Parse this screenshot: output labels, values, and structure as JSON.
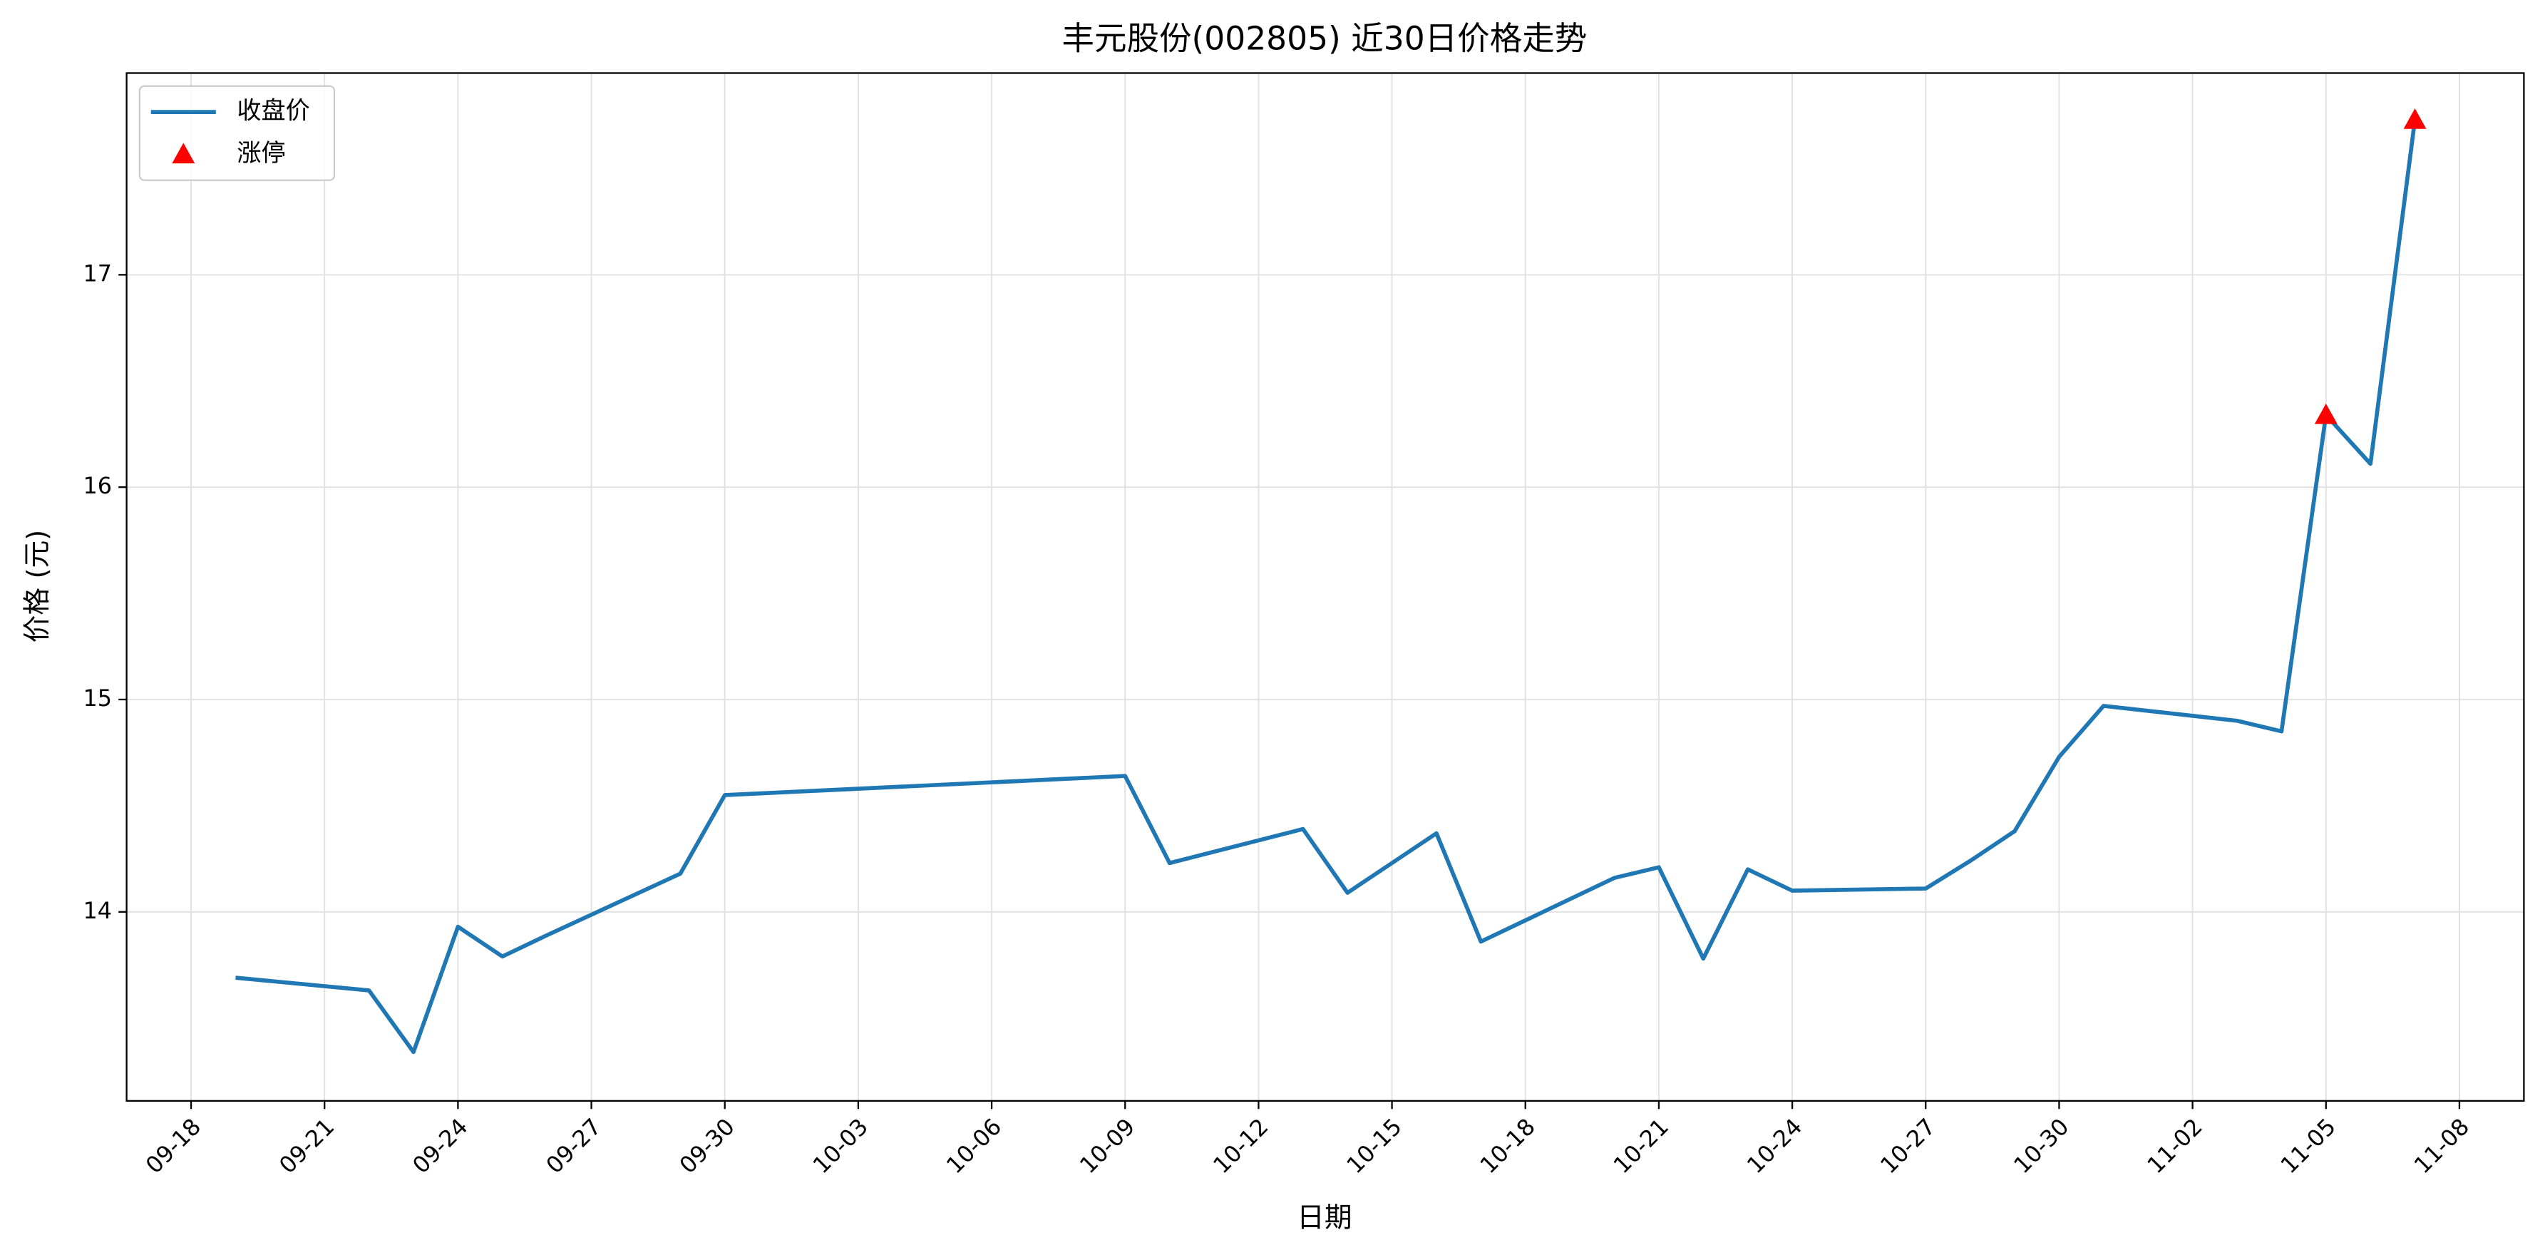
{
  "chart_data": {
    "type": "line",
    "title": "丰元股份(002805) 近30日价格走势",
    "xlabel": "日期",
    "ylabel": "价格 (元)",
    "series": [
      {
        "name": "收盘价",
        "color": "#1f77b4",
        "marker": "none",
        "x": [
          "09-19",
          "09-22",
          "09-23",
          "09-24",
          "09-25",
          "09-26",
          "09-29",
          "09-30",
          "10-09",
          "10-10",
          "10-13",
          "10-14",
          "10-15",
          "10-16",
          "10-17",
          "10-20",
          "10-21",
          "10-22",
          "10-23",
          "10-24",
          "10-27",
          "10-28",
          "10-29",
          "10-30",
          "10-31",
          "11-03",
          "11-04",
          "11-05",
          "11-06",
          "11-07"
        ],
        "values": [
          13.69,
          13.63,
          13.34,
          13.93,
          13.79,
          13.89,
          14.18,
          14.55,
          14.64,
          14.23,
          14.39,
          14.09,
          14.23,
          14.37,
          13.86,
          14.16,
          14.21,
          13.78,
          14.2,
          14.1,
          14.11,
          14.24,
          14.38,
          14.73,
          14.97,
          14.9,
          14.85,
          16.34,
          16.11,
          17.73
        ]
      },
      {
        "name": "涨停",
        "color": "#ff0000",
        "marker": "triangle",
        "x": [
          "11-05",
          "11-07"
        ],
        "values": [
          16.34,
          17.73
        ]
      }
    ],
    "xticks": [
      "09-18",
      "09-21",
      "09-24",
      "09-27",
      "09-30",
      "10-03",
      "10-06",
      "10-09",
      "10-12",
      "10-15",
      "10-18",
      "10-21",
      "10-24",
      "10-27",
      "10-30",
      "11-02",
      "11-05",
      "11-08"
    ],
    "ylim": [
      13.11,
      17.95
    ],
    "yticks": [
      14,
      15,
      16,
      17
    ],
    "grid": true,
    "legend": "upper-left"
  }
}
